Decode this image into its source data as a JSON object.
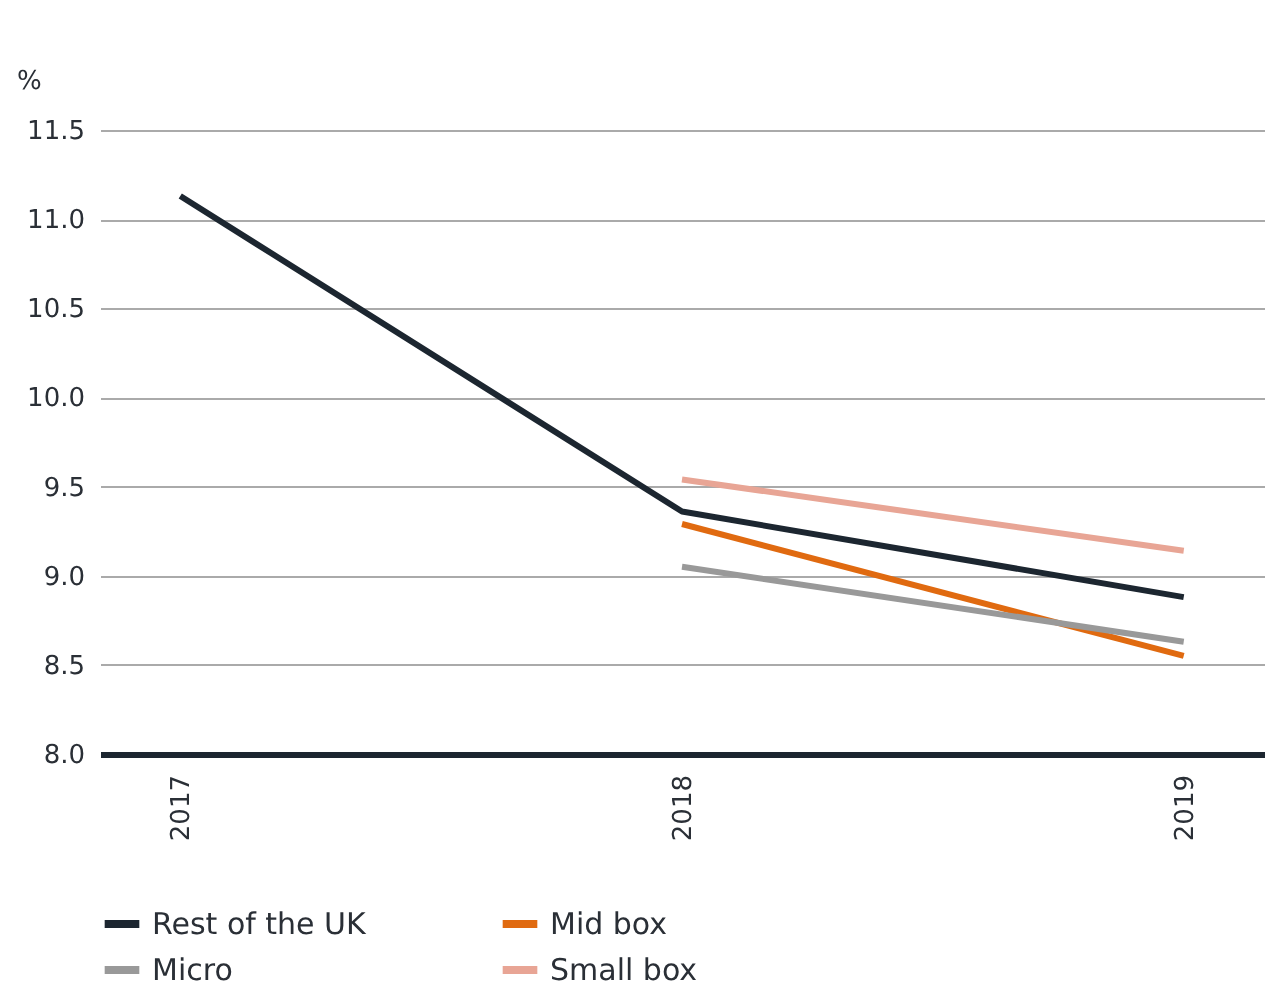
{
  "chart_data": {
    "type": "line",
    "ylabel": "%",
    "categories": [
      "2017",
      "2018",
      "2019"
    ],
    "series": [
      {
        "name": "Rest of the UK",
        "color": "#1c2630",
        "values": [
          11.13,
          9.36,
          8.88
        ]
      },
      {
        "name": "Mid box",
        "color": "#e06a10",
        "values": [
          null,
          9.29,
          8.55
        ]
      },
      {
        "name": "Micro",
        "color": "#999999",
        "values": [
          null,
          9.05,
          8.63
        ]
      },
      {
        "name": "Small box",
        "color": "#e8a595",
        "values": [
          null,
          9.54,
          9.14
        ]
      }
    ],
    "ylim": [
      8.0,
      11.5
    ],
    "yticks": [
      {
        "value": 8.0,
        "label": "8.0"
      },
      {
        "value": 8.5,
        "label": "8.5"
      },
      {
        "value": 9.0,
        "label": "9.0"
      },
      {
        "value": 9.5,
        "label": "9.5"
      },
      {
        "value": 10.0,
        "label": "10.0"
      },
      {
        "value": 10.5,
        "label": "10.5"
      },
      {
        "value": 11.0,
        "label": "11.0"
      },
      {
        "value": 11.5,
        "label": "11.5"
      }
    ],
    "grid": "y",
    "legend": "bottom",
    "marker": "none",
    "line_style": "solid"
  }
}
